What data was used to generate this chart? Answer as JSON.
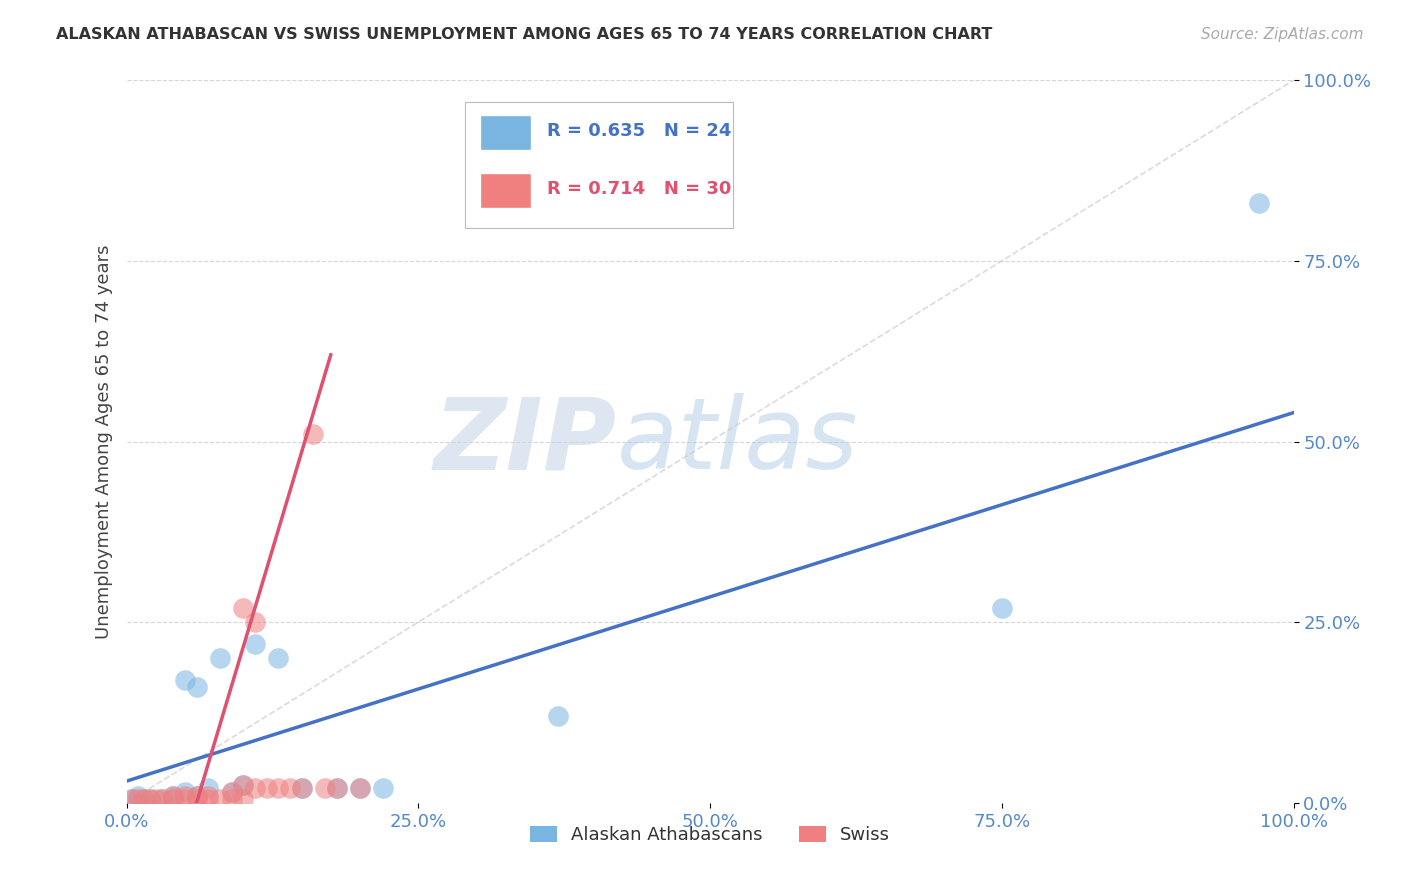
{
  "title": "ALASKAN ATHABASCAN VS SWISS UNEMPLOYMENT AMONG AGES 65 TO 74 YEARS CORRELATION CHART",
  "source": "Source: ZipAtlas.com",
  "ylabel": "Unemployment Among Ages 65 to 74 years",
  "xlim": [
    0.0,
    1.0
  ],
  "ylim": [
    0.0,
    1.0
  ],
  "xticks": [
    0.0,
    0.25,
    0.5,
    0.75,
    1.0
  ],
  "yticks": [
    0.0,
    0.25,
    0.5,
    0.75,
    1.0
  ],
  "xticklabels": [
    "0.0%",
    "25.0%",
    "50.0%",
    "75.0%",
    "100.0%"
  ],
  "yticklabels": [
    "0.0%",
    "25.0%",
    "50.0%",
    "75.0%",
    "100.0%"
  ],
  "watermark_zip": "ZIP",
  "watermark_atlas": "atlas",
  "legend_entries": [
    {
      "label": "Alaskan Athabascans",
      "color": "#6ea8d8"
    },
    {
      "label": "Swiss",
      "color": "#f08080"
    }
  ],
  "R_blue": 0.635,
  "N_blue": 24,
  "R_pink": 0.714,
  "N_pink": 30,
  "blue_color": "#7ab4e0",
  "pink_color": "#f08080",
  "blue_line_color": "#4472c4",
  "pink_line_color": "#e05070",
  "scatter_blue": [
    [
      0.005,
      0.005
    ],
    [
      0.01,
      0.01
    ],
    [
      0.015,
      0.005
    ],
    [
      0.02,
      0.005
    ],
    [
      0.03,
      0.005
    ],
    [
      0.04,
      0.005
    ],
    [
      0.04,
      0.01
    ],
    [
      0.05,
      0.015
    ],
    [
      0.05,
      0.17
    ],
    [
      0.06,
      0.01
    ],
    [
      0.06,
      0.16
    ],
    [
      0.07,
      0.02
    ],
    [
      0.08,
      0.2
    ],
    [
      0.09,
      0.015
    ],
    [
      0.1,
      0.025
    ],
    [
      0.11,
      0.22
    ],
    [
      0.13,
      0.2
    ],
    [
      0.15,
      0.02
    ],
    [
      0.18,
      0.02
    ],
    [
      0.2,
      0.02
    ],
    [
      0.22,
      0.02
    ],
    [
      0.37,
      0.12
    ],
    [
      0.75,
      0.27
    ],
    [
      0.97,
      0.83
    ]
  ],
  "scatter_pink": [
    [
      0.005,
      0.005
    ],
    [
      0.01,
      0.005
    ],
    [
      0.015,
      0.005
    ],
    [
      0.02,
      0.005
    ],
    [
      0.025,
      0.005
    ],
    [
      0.03,
      0.005
    ],
    [
      0.04,
      0.005
    ],
    [
      0.04,
      0.01
    ],
    [
      0.05,
      0.005
    ],
    [
      0.05,
      0.01
    ],
    [
      0.06,
      0.005
    ],
    [
      0.06,
      0.01
    ],
    [
      0.07,
      0.005
    ],
    [
      0.07,
      0.01
    ],
    [
      0.08,
      0.005
    ],
    [
      0.09,
      0.005
    ],
    [
      0.09,
      0.015
    ],
    [
      0.1,
      0.005
    ],
    [
      0.1,
      0.025
    ],
    [
      0.1,
      0.27
    ],
    [
      0.11,
      0.02
    ],
    [
      0.11,
      0.25
    ],
    [
      0.12,
      0.02
    ],
    [
      0.13,
      0.02
    ],
    [
      0.14,
      0.02
    ],
    [
      0.15,
      0.02
    ],
    [
      0.16,
      0.51
    ],
    [
      0.17,
      0.02
    ],
    [
      0.18,
      0.02
    ],
    [
      0.2,
      0.02
    ]
  ],
  "blue_trendline": [
    [
      0.0,
      0.03
    ],
    [
      1.0,
      0.54
    ]
  ],
  "pink_trendline": [
    [
      0.06,
      0.0
    ],
    [
      0.175,
      0.62
    ]
  ],
  "identity_line": [
    [
      0.0,
      0.0
    ],
    [
      1.0,
      1.0
    ]
  ]
}
